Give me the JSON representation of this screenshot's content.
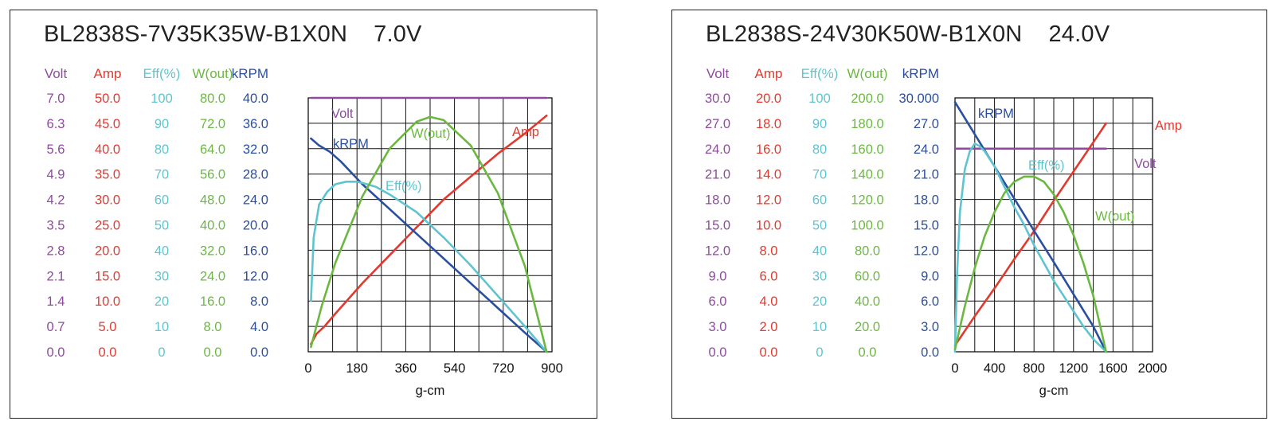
{
  "chart_data": [
    {
      "type": "line",
      "title": "BL2838S-7V35K35W-B1X0N    7.0V",
      "xlabel": "g-cm",
      "xlim": [
        0,
        900
      ],
      "x_ticks": [
        "0",
        "180",
        "360",
        "540",
        "720",
        "900"
      ],
      "grid": true,
      "axis_columns": [
        {
          "name": "Volt",
          "color": "#8e4a9e",
          "ticks": [
            "0.0",
            "0.7",
            "1.4",
            "2.1",
            "2.8",
            "3.5",
            "4.2",
            "4.9",
            "5.6",
            "6.3",
            "7.0"
          ]
        },
        {
          "name": "Amp",
          "color": "#e03a2f",
          "ticks": [
            "0.0",
            "5.0",
            "10.0",
            "15.0",
            "20.0",
            "25.0",
            "30.0",
            "35.0",
            "40.0",
            "45.0",
            "50.0"
          ]
        },
        {
          "name": "Eff(%)",
          "color": "#5fc4cf",
          "ticks": [
            "0",
            "10",
            "20",
            "30",
            "40",
            "50",
            "60",
            "70",
            "80",
            "90",
            "100"
          ]
        },
        {
          "name": "W(out)",
          "color": "#6bb841",
          "ticks": [
            "0.0",
            "8.0",
            "16.0",
            "24.0",
            "32.0",
            "40.0",
            "48.0",
            "56.0",
            "64.0",
            "72.0",
            "80.0"
          ]
        },
        {
          "name": "kRPM",
          "color": "#2a4fa0",
          "ticks": [
            "0.0",
            "4.0",
            "8.0",
            "12.0",
            "16.0",
            "20.0",
            "24.0",
            "28.0",
            "32.0",
            "36.0",
            "40.0"
          ]
        }
      ],
      "series": [
        {
          "name": "Volt",
          "axis": 0,
          "color": "#8e4a9e",
          "x": [
            10,
            880
          ],
          "y": [
            7.0,
            7.0
          ]
        },
        {
          "name": "Amp",
          "axis": 1,
          "color": "#e03a2f",
          "x": [
            10,
            30,
            60,
            100,
            200,
            300,
            400,
            500,
            600,
            700,
            800,
            880
          ],
          "y": [
            1.5,
            3.5,
            5.0,
            7.5,
            13.5,
            19.0,
            24.5,
            30.0,
            34.5,
            39.0,
            43.0,
            46.5
          ]
        },
        {
          "name": "kRPM",
          "axis": 4,
          "color": "#2a4fa0",
          "x": [
            10,
            40,
            80,
            120,
            200,
            300,
            400,
            500,
            600,
            700,
            800,
            880
          ],
          "y": [
            33.6,
            32.5,
            31.5,
            30.0,
            26.4,
            22.5,
            18.6,
            14.7,
            10.8,
            6.9,
            3.0,
            0.0
          ]
        },
        {
          "name": "Eff(%)",
          "axis": 2,
          "color": "#5fc4cf",
          "x": [
            10,
            20,
            40,
            70,
            100,
            140,
            180,
            200,
            250,
            300,
            400,
            500,
            600,
            700,
            800,
            880
          ],
          "y": [
            20,
            45,
            58,
            63,
            66,
            67,
            67,
            66.5,
            65,
            62,
            55,
            45,
            34,
            22,
            10,
            0
          ]
        },
        {
          "name": "W(out)",
          "axis": 3,
          "color": "#6bb841",
          "x": [
            10,
            50,
            100,
            200,
            300,
            400,
            450,
            500,
            600,
            700,
            800,
            880
          ],
          "y": [
            1.5,
            14.5,
            28.0,
            49.0,
            64.0,
            72.5,
            74.0,
            73.0,
            65.0,
            50.0,
            27.0,
            0.0
          ]
        }
      ],
      "labels": [
        "Volt",
        "kRPM",
        "W(out)",
        "Amp",
        "Eff(%)"
      ]
    },
    {
      "type": "line",
      "title": "BL2838S-24V30K50W-B1X0N    24.0V",
      "xlabel": "g-cm",
      "xlim": [
        0,
        2000
      ],
      "x_ticks": [
        "0",
        "400",
        "800",
        "1200",
        "1600",
        "2000"
      ],
      "grid": true,
      "axis_columns": [
        {
          "name": "Volt",
          "color": "#8e4a9e",
          "ticks": [
            "0.0",
            "3.0",
            "6.0",
            "9.0",
            "12.0",
            "15.0",
            "18.0",
            "21.0",
            "24.0",
            "27.0",
            "30.0"
          ]
        },
        {
          "name": "Amp",
          "color": "#e03a2f",
          "ticks": [
            "0.0",
            "2.0",
            "4.0",
            "6.0",
            "8.0",
            "10.0",
            "12.0",
            "14.0",
            "16.0",
            "18.0",
            "20.0"
          ]
        },
        {
          "name": "Eff(%)",
          "color": "#5fc4cf",
          "ticks": [
            "0",
            "10",
            "20",
            "30",
            "40",
            "50",
            "60",
            "70",
            "80",
            "90",
            "100"
          ]
        },
        {
          "name": "W(out)",
          "color": "#6bb841",
          "ticks": [
            "0.0",
            "20.0",
            "40.0",
            "60.0",
            "80.0",
            "100.0",
            "120.0",
            "140.0",
            "160.0",
            "180.0",
            "200.0"
          ]
        },
        {
          "name": "kRPM",
          "color": "#2a4fa0",
          "ticks": [
            "0.0",
            "3.0",
            "6.0",
            "9.0",
            "12.0",
            "15.0",
            "18.0",
            "21.0",
            "24.0",
            "27.0",
            "30.000"
          ]
        }
      ],
      "series": [
        {
          "name": "Volt",
          "axis": 0,
          "color": "#8e4a9e",
          "x": [
            0,
            1530
          ],
          "y": [
            24.0,
            24.0
          ]
        },
        {
          "name": "Amp",
          "axis": 1,
          "color": "#e03a2f",
          "x": [
            0,
            200,
            400,
            600,
            800,
            1000,
            1200,
            1400,
            1530
          ],
          "y": [
            0.5,
            2.8,
            5.0,
            7.3,
            9.5,
            11.9,
            14.2,
            16.5,
            18.0
          ]
        },
        {
          "name": "kRPM",
          "axis": 4,
          "color": "#2a4fa0",
          "x": [
            0,
            200,
            400,
            600,
            800,
            1000,
            1200,
            1400,
            1530
          ],
          "y": [
            29.5,
            25.7,
            21.9,
            18.1,
            14.3,
            10.6,
            6.8,
            3.0,
            0.0
          ]
        },
        {
          "name": "Eff(%)",
          "axis": 2,
          "color": "#5fc4cf",
          "x": [
            0,
            20,
            50,
            100,
            150,
            200,
            250,
            300,
            400,
            500,
            600,
            700,
            800,
            900,
            1000,
            1100,
            1200,
            1300,
            1400,
            1530
          ],
          "y": [
            0,
            30,
            55,
            72,
            79,
            82,
            81,
            79,
            73,
            65,
            57,
            50,
            42,
            35,
            28,
            22,
            16,
            10,
            5,
            0
          ]
        },
        {
          "name": "W(out)",
          "axis": 3,
          "color": "#6bb841",
          "x": [
            0,
            100,
            200,
            300,
            400,
            500,
            600,
            700,
            800,
            900,
            1000,
            1100,
            1200,
            1300,
            1400,
            1530
          ],
          "y": [
            2,
            36,
            66,
            91,
            110,
            125,
            134,
            138,
            138,
            134,
            124,
            110,
            92,
            70,
            44,
            0
          ]
        }
      ],
      "labels": [
        "kRPM",
        "Amp",
        "Eff(%)",
        "Volt",
        "W(out)"
      ]
    }
  ]
}
